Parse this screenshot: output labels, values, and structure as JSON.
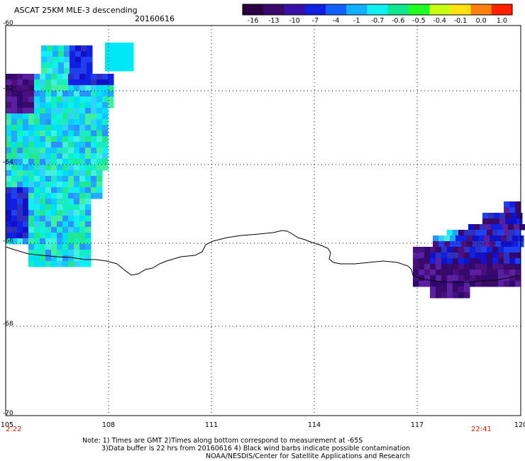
{
  "header": {
    "title": "ASCAT 25KM MLE-3 descending",
    "date": "20160616"
  },
  "colorbar": {
    "labels": [
      "-16",
      "-13",
      "-10",
      "-7",
      "-4",
      "-1",
      "-0.7",
      "-0.6",
      "-0.5",
      "-0.4",
      "-0.1",
      "0.0",
      "1.0"
    ],
    "colors": [
      "#2a0040",
      "#3a0a6a",
      "#3a10a8",
      "#1020e0",
      "#1060ff",
      "#10b0ff",
      "#10f0f0",
      "#10e890",
      "#20ff20",
      "#c8ff10",
      "#ffe010",
      "#ff8010",
      "#ff2000"
    ]
  },
  "axes": {
    "y_labels": [
      "-60",
      "-62",
      "-64",
      "-66",
      "-68",
      "-70"
    ],
    "x_labels": [
      "105",
      "108",
      "111",
      "114",
      "117",
      "120"
    ]
  },
  "times": {
    "left": "2:22",
    "right": "22:41"
  },
  "notes": {
    "line1": "Note: 1) Times are GMT 2)Times along bottom correspond to measurement at -65S",
    "line2": "3)Data buffer is 22 hrs from 20160616 4) Black wind barbs indicate possible contamination",
    "line3": "NOAA/NESDIS/Center for Satellite Applications and Research"
  },
  "colors": {
    "coastline": "#000000",
    "grid": "#000000",
    "frame": "#000000"
  }
}
